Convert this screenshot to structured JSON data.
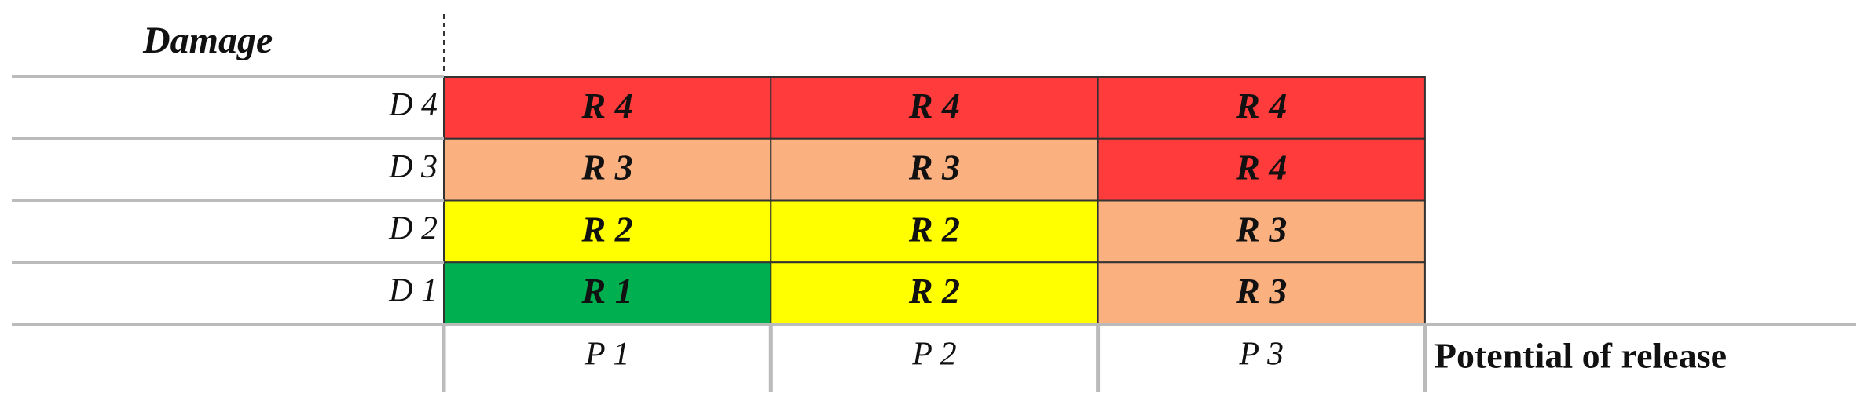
{
  "y_label": "Damage",
  "x_label": "Potential of release",
  "columns": [
    "P 1",
    "P 2",
    "P 3"
  ],
  "rows": [
    {
      "label": "D 4",
      "cells": [
        {
          "text": "R 4",
          "color": "#ff3b3b"
        },
        {
          "text": "R 4",
          "color": "#ff3b3b"
        },
        {
          "text": "R 4",
          "color": "#ff3b3b"
        }
      ]
    },
    {
      "label": "D 3",
      "cells": [
        {
          "text": "R 3",
          "color": "#fbb080"
        },
        {
          "text": "R 3",
          "color": "#fbb080"
        },
        {
          "text": "R 4",
          "color": "#ff3b3b"
        }
      ]
    },
    {
      "label": "D 2",
      "cells": [
        {
          "text": "R 2",
          "color": "#ffff00"
        },
        {
          "text": "R 2",
          "color": "#ffff00"
        },
        {
          "text": "R 3",
          "color": "#fbb080"
        }
      ]
    },
    {
      "label": "D 1",
      "cells": [
        {
          "text": "R 1",
          "color": "#00b050"
        },
        {
          "text": "R 2",
          "color": "#ffff00"
        },
        {
          "text": "R 3",
          "color": "#fbb080"
        }
      ]
    }
  ]
}
